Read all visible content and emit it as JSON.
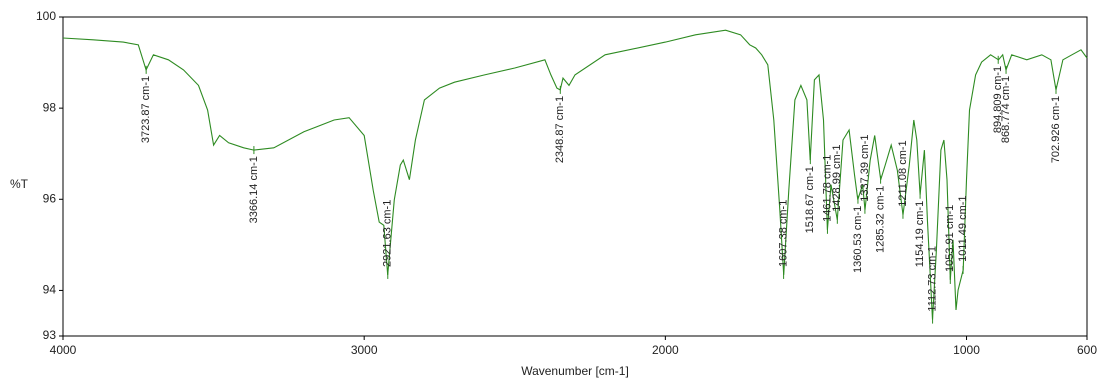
{
  "chart_data": {
    "type": "line",
    "xlabel": "Wavenumber [cm-1]",
    "ylabel": "%T",
    "xlim": [
      4000,
      600
    ],
    "ylim": [
      93,
      100
    ],
    "xticks": [
      4000,
      3000,
      2000,
      1000,
      600
    ],
    "yticks": [
      100,
      98,
      96,
      94,
      93
    ],
    "series": [
      {
        "color": "#2e8b22",
        "x": [
          4000,
          3900,
          3800,
          3750,
          3724,
          3700,
          3650,
          3600,
          3550,
          3520,
          3500,
          3480,
          3450,
          3400,
          3366,
          3300,
          3200,
          3100,
          3050,
          3000,
          2970,
          2950,
          2935,
          2922,
          2900,
          2880,
          2870,
          2850,
          2830,
          2800,
          2750,
          2700,
          2600,
          2500,
          2400,
          2380,
          2360,
          2349,
          2340,
          2320,
          2300,
          2200,
          2000,
          1900,
          1800,
          1750,
          1720,
          1700,
          1680,
          1660,
          1640,
          1620,
          1607,
          1590,
          1570,
          1550,
          1530,
          1519,
          1505,
          1490,
          1475,
          1462,
          1450,
          1429,
          1410,
          1390,
          1372,
          1361,
          1345,
          1337,
          1320,
          1305,
          1285,
          1270,
          1250,
          1230,
          1211,
          1190,
          1175,
          1165,
          1154,
          1140,
          1130,
          1113,
          1100,
          1085,
          1075,
          1065,
          1054,
          1045,
          1035,
          1028,
          1011,
          1000,
          990,
          970,
          950,
          920,
          894,
          880,
          869,
          850,
          800,
          750,
          720,
          703,
          680,
          650,
          620,
          600
        ],
        "values": [
          99.54,
          99.5,
          99.45,
          99.39,
          98.84,
          99.17,
          99.06,
          98.84,
          98.5,
          97.96,
          97.19,
          97.4,
          97.24,
          97.13,
          97.08,
          97.13,
          97.48,
          97.74,
          97.79,
          97.4,
          96.2,
          95.5,
          95.43,
          94.34,
          95.99,
          96.75,
          96.86,
          96.43,
          97.3,
          98.18,
          98.44,
          98.57,
          98.73,
          98.88,
          99.06,
          98.73,
          98.44,
          98.4,
          98.66,
          98.5,
          98.73,
          99.17,
          99.45,
          99.61,
          99.71,
          99.61,
          99.39,
          99.32,
          99.17,
          98.95,
          97.74,
          95.77,
          94.34,
          96.2,
          98.18,
          98.5,
          98.18,
          96.86,
          98.62,
          98.73,
          97.74,
          95.33,
          96.32,
          95.55,
          97.3,
          97.52,
          96.54,
          95.99,
          96.32,
          95.77,
          96.86,
          97.4,
          96.43,
          96.75,
          97.19,
          96.64,
          95.66,
          96.75,
          97.74,
          97.3,
          96.1,
          97.08,
          95.55,
          93.36,
          94.89,
          97.08,
          97.3,
          96.43,
          94.23,
          95.11,
          93.57,
          94.01,
          94.45,
          96.43,
          97.96,
          98.73,
          99.01,
          99.17,
          99.06,
          99.17,
          98.84,
          99.17,
          99.06,
          99.17,
          99.06,
          98.4,
          99.06,
          99.17,
          99.28,
          99.1
        ]
      }
    ],
    "annotations": [
      {
        "x": 3723.87,
        "y": 98.84,
        "label": "3723.87 cm-1"
      },
      {
        "x": 3366.14,
        "y": 97.08,
        "label": "3366.14 cm-1"
      },
      {
        "x": 2921.63,
        "y": 94.34,
        "label": "2921.63 cm-1"
      },
      {
        "x": 2348.87,
        "y": 98.4,
        "label": "2348.87 cm-1"
      },
      {
        "x": 1607.38,
        "y": 94.34,
        "label": "1607.38 cm-1"
      },
      {
        "x": 1518.67,
        "y": 96.86,
        "label": "1518.67 cm-1"
      },
      {
        "x": 1461.78,
        "y": 95.33,
        "label": "1461.78 cm-1"
      },
      {
        "x": 1428.99,
        "y": 95.55,
        "label": "1428.99 cm-1"
      },
      {
        "x": 1360.53,
        "y": 95.99,
        "label": "1360.53 cm-1"
      },
      {
        "x": 1337.39,
        "y": 95.77,
        "label": "1337.39 cm-1"
      },
      {
        "x": 1285.32,
        "y": 96.43,
        "label": "1285.32 cm-1"
      },
      {
        "x": 1211.08,
        "y": 95.66,
        "label": "1211.08 cm-1"
      },
      {
        "x": 1154.19,
        "y": 96.1,
        "label": "1154.19 cm-1"
      },
      {
        "x": 1112.73,
        "y": 93.36,
        "label": "1112.73 cm-1"
      },
      {
        "x": 1053.91,
        "y": 94.23,
        "label": "1053.91 cm-1"
      },
      {
        "x": 1011.49,
        "y": 94.45,
        "label": "1011.49 cm-1"
      },
      {
        "x": 894.809,
        "y": 99.06,
        "label": "894.809 cm-1"
      },
      {
        "x": 868.774,
        "y": 98.84,
        "label": "868.774 cm-1"
      },
      {
        "x": 702.926,
        "y": 98.4,
        "label": "702.926 cm-1"
      }
    ]
  }
}
